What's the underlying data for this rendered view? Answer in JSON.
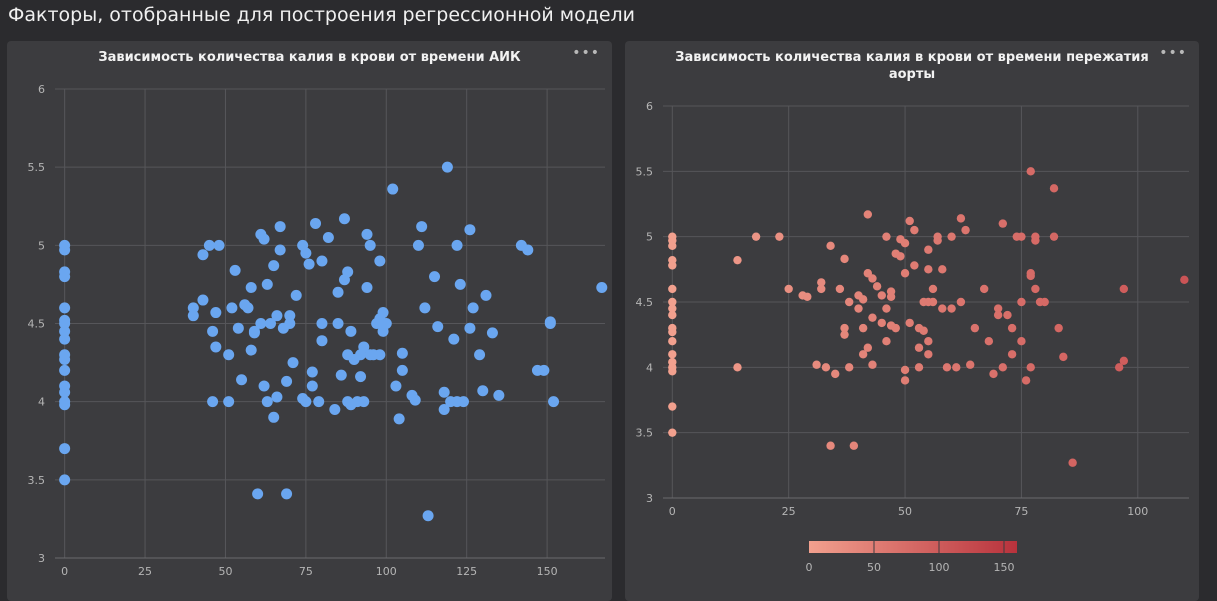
{
  "page": {
    "title": "Факторы, отобранные для построения регрессионной модели"
  },
  "chart_data": [
    {
      "type": "scatter",
      "title": "Зависимость количества калия в крови от времени АИК",
      "xlabel": "",
      "ylabel": "",
      "xlim": [
        -3,
        168
      ],
      "ylim": [
        3,
        6
      ],
      "xticks": [
        0,
        25,
        50,
        75,
        100,
        125,
        150
      ],
      "yticks": [
        3,
        3.5,
        4,
        4.5,
        5,
        5.5,
        6
      ],
      "grid": true,
      "color": "#6aa6f0",
      "points": [
        [
          0,
          5.0
        ],
        [
          0,
          4.97
        ],
        [
          0,
          4.83
        ],
        [
          0,
          4.8
        ],
        [
          0,
          4.6
        ],
        [
          0,
          4.52
        ],
        [
          0,
          4.5
        ],
        [
          0,
          4.45
        ],
        [
          0,
          4.4
        ],
        [
          0,
          4.3
        ],
        [
          0,
          4.27
        ],
        [
          0,
          4.2
        ],
        [
          0,
          4.1
        ],
        [
          0,
          4.06
        ],
        [
          0,
          4.0
        ],
        [
          0,
          3.98
        ],
        [
          0,
          3.7
        ],
        [
          0,
          3.5
        ],
        [
          40,
          4.6
        ],
        [
          40,
          4.55
        ],
        [
          43,
          4.65
        ],
        [
          43,
          4.94
        ],
        [
          45,
          5.0
        ],
        [
          46,
          4.45
        ],
        [
          46,
          4.0
        ],
        [
          47,
          4.35
        ],
        [
          47,
          4.57
        ],
        [
          48,
          5.0
        ],
        [
          51,
          4.3
        ],
        [
          51,
          4.0
        ],
        [
          52,
          4.6
        ],
        [
          53,
          4.84
        ],
        [
          54,
          4.47
        ],
        [
          55,
          4.14
        ],
        [
          56,
          4.62
        ],
        [
          57,
          4.6
        ],
        [
          58,
          4.33
        ],
        [
          58,
          4.73
        ],
        [
          59,
          4.45
        ],
        [
          59,
          4.44
        ],
        [
          60,
          3.41
        ],
        [
          61,
          4.5
        ],
        [
          61,
          5.07
        ],
        [
          62,
          5.04
        ],
        [
          62,
          4.1
        ],
        [
          63,
          4.0
        ],
        [
          63,
          4.75
        ],
        [
          64,
          4.5
        ],
        [
          65,
          3.9
        ],
        [
          65,
          4.87
        ],
        [
          66,
          4.03
        ],
        [
          66,
          4.55
        ],
        [
          67,
          5.12
        ],
        [
          67,
          4.97
        ],
        [
          68,
          4.47
        ],
        [
          69,
          4.13
        ],
        [
          69,
          3.41
        ],
        [
          70,
          4.5
        ],
        [
          70,
          4.55
        ],
        [
          71,
          4.25
        ],
        [
          72,
          4.68
        ],
        [
          74,
          4.02
        ],
        [
          74,
          5.0
        ],
        [
          75,
          4.0
        ],
        [
          75,
          4.95
        ],
        [
          76,
          4.88
        ],
        [
          77,
          4.19
        ],
        [
          77,
          4.1
        ],
        [
          78,
          5.14
        ],
        [
          79,
          4.0
        ],
        [
          80,
          4.9
        ],
        [
          80,
          4.5
        ],
        [
          80,
          4.39
        ],
        [
          82,
          5.05
        ],
        [
          84,
          3.95
        ],
        [
          85,
          4.5
        ],
        [
          85,
          4.7
        ],
        [
          86,
          4.17
        ],
        [
          87,
          4.78
        ],
        [
          87,
          5.17
        ],
        [
          88,
          4.3
        ],
        [
          88,
          4.83
        ],
        [
          88,
          4.0
        ],
        [
          89,
          4.45
        ],
        [
          89,
          3.98
        ],
        [
          90,
          4.27
        ],
        [
          91,
          4.0
        ],
        [
          92,
          4.3
        ],
        [
          92,
          4.16
        ],
        [
          93,
          4.0
        ],
        [
          93,
          4.35
        ],
        [
          94,
          4.73
        ],
        [
          94,
          5.07
        ],
        [
          95,
          4.3
        ],
        [
          95,
          5.0
        ],
        [
          96,
          4.3
        ],
        [
          97,
          4.5
        ],
        [
          98,
          4.3
        ],
        [
          98,
          4.9
        ],
        [
          98,
          4.53
        ],
        [
          99,
          4.57
        ],
        [
          99,
          4.49
        ],
        [
          99,
          4.45
        ],
        [
          100,
          4.5
        ],
        [
          102,
          5.36
        ],
        [
          103,
          4.1
        ],
        [
          104,
          3.89
        ],
        [
          105,
          4.2
        ],
        [
          105,
          4.31
        ],
        [
          108,
          4.04
        ],
        [
          109,
          4.01
        ],
        [
          110,
          5.0
        ],
        [
          111,
          5.12
        ],
        [
          112,
          4.6
        ],
        [
          113,
          3.27
        ],
        [
          115,
          4.8
        ],
        [
          116,
          4.48
        ],
        [
          118,
          3.95
        ],
        [
          118,
          4.06
        ],
        [
          119,
          5.5
        ],
        [
          120,
          4.0
        ],
        [
          121,
          4.4
        ],
        [
          122,
          5.0
        ],
        [
          122,
          4.0
        ],
        [
          123,
          4.75
        ],
        [
          124,
          4.0
        ],
        [
          126,
          5.1
        ],
        [
          126,
          4.47
        ],
        [
          127,
          4.6
        ],
        [
          129,
          4.3
        ],
        [
          130,
          4.07
        ],
        [
          131,
          4.68
        ],
        [
          133,
          4.44
        ],
        [
          135,
          4.04
        ],
        [
          142,
          5.0
        ],
        [
          144,
          4.97
        ],
        [
          147,
          4.2
        ],
        [
          149,
          4.2
        ],
        [
          151,
          4.5
        ],
        [
          151,
          4.51
        ],
        [
          152,
          4.0
        ],
        [
          167,
          4.73
        ]
      ]
    },
    {
      "type": "scatter",
      "title": "Зависимость количества калия в крови от времени пережатия аорты",
      "xlabel": "",
      "ylabel": "",
      "xlim": [
        -2,
        111
      ],
      "ylim": [
        3,
        6
      ],
      "xticks": [
        0,
        25,
        50,
        75,
        100
      ],
      "yticks": [
        3,
        3.5,
        4,
        4.5,
        5,
        5.5,
        6
      ],
      "grid": true,
      "color_scale": {
        "colors": [
          "#f2a08e",
          "#b8323c"
        ],
        "range": [
          0,
          160
        ],
        "ticks": [
          0,
          50,
          100,
          150
        ]
      },
      "points": [
        [
          0,
          5.0
        ],
        [
          0,
          4.97
        ],
        [
          0,
          4.93
        ],
        [
          0,
          4.82
        ],
        [
          0,
          4.78
        ],
        [
          0,
          4.6
        ],
        [
          0,
          4.5
        ],
        [
          0,
          4.45
        ],
        [
          0,
          4.4
        ],
        [
          0,
          4.3
        ],
        [
          0,
          4.27
        ],
        [
          0,
          4.2
        ],
        [
          0,
          4.1
        ],
        [
          0,
          4.04
        ],
        [
          0,
          4.0
        ],
        [
          0,
          3.97
        ],
        [
          0,
          3.7
        ],
        [
          0,
          3.5
        ],
        [
          14,
          4.82
        ],
        [
          14,
          4.0
        ],
        [
          18,
          5.0
        ],
        [
          23,
          5.0
        ],
        [
          25,
          4.6
        ],
        [
          28,
          4.55
        ],
        [
          29,
          4.54
        ],
        [
          31,
          4.02
        ],
        [
          32,
          4.6
        ],
        [
          32,
          4.65
        ],
        [
          33,
          4.0
        ],
        [
          34,
          4.93
        ],
        [
          34,
          3.4
        ],
        [
          35,
          3.95
        ],
        [
          36,
          4.6
        ],
        [
          37,
          4.83
        ],
        [
          37,
          4.3
        ],
        [
          37,
          4.25
        ],
        [
          38,
          4.0
        ],
        [
          38,
          4.5
        ],
        [
          39,
          3.4
        ],
        [
          40,
          4.45
        ],
        [
          40,
          4.55
        ],
        [
          41,
          4.3
        ],
        [
          41,
          4.1
        ],
        [
          41,
          4.52
        ],
        [
          42,
          5.17
        ],
        [
          42,
          4.72
        ],
        [
          42,
          4.15
        ],
        [
          43,
          4.02
        ],
        [
          43,
          4.68
        ],
        [
          43,
          4.38
        ],
        [
          44,
          4.62
        ],
        [
          45,
          4.55
        ],
        [
          45,
          4.34
        ],
        [
          46,
          4.45
        ],
        [
          46,
          4.2
        ],
        [
          46,
          5.0
        ],
        [
          47,
          4.58
        ],
        [
          47,
          4.32
        ],
        [
          47,
          4.54
        ],
        [
          48,
          4.87
        ],
        [
          48,
          4.3
        ],
        [
          49,
          4.98
        ],
        [
          49,
          4.85
        ],
        [
          50,
          3.98
        ],
        [
          50,
          4.72
        ],
        [
          50,
          3.9
        ],
        [
          50,
          4.95
        ],
        [
          51,
          5.12
        ],
        [
          51,
          4.34
        ],
        [
          52,
          4.78
        ],
        [
          52,
          5.05
        ],
        [
          53,
          4.3
        ],
        [
          53,
          4.0
        ],
        [
          53,
          4.15
        ],
        [
          54,
          4.5
        ],
        [
          54,
          4.28
        ],
        [
          55,
          4.5
        ],
        [
          55,
          4.1
        ],
        [
          55,
          4.2
        ],
        [
          55,
          4.75
        ],
        [
          55,
          4.9
        ],
        [
          56,
          4.5
        ],
        [
          56,
          4.6
        ],
        [
          57,
          5.0
        ],
        [
          57,
          4.97
        ],
        [
          58,
          4.45
        ],
        [
          58,
          4.75
        ],
        [
          59,
          4.0
        ],
        [
          60,
          4.45
        ],
        [
          60,
          5.0
        ],
        [
          61,
          4.0
        ],
        [
          62,
          4.5
        ],
        [
          62,
          5.14
        ],
        [
          63,
          5.05
        ],
        [
          64,
          4.02
        ],
        [
          65,
          4.3
        ],
        [
          67,
          4.6
        ],
        [
          68,
          4.2
        ],
        [
          69,
          3.95
        ],
        [
          70,
          4.4
        ],
        [
          70,
          4.45
        ],
        [
          71,
          5.1
        ],
        [
          71,
          4.0
        ],
        [
          72,
          4.4
        ],
        [
          73,
          4.3
        ],
        [
          73,
          4.1
        ],
        [
          74,
          5.0
        ],
        [
          75,
          5.0
        ],
        [
          75,
          4.2
        ],
        [
          75,
          4.5
        ],
        [
          76,
          3.9
        ],
        [
          77,
          4.0
        ],
        [
          77,
          4.72
        ],
        [
          77,
          4.7
        ],
        [
          77,
          5.5
        ],
        [
          78,
          5.0
        ],
        [
          78,
          4.97
        ],
        [
          78,
          4.6
        ],
        [
          79,
          4.5
        ],
        [
          80,
          4.5
        ],
        [
          82,
          5.37
        ],
        [
          82,
          5.0
        ],
        [
          83,
          4.3
        ],
        [
          84,
          4.08
        ],
        [
          86,
          3.27
        ],
        [
          96,
          4.0
        ],
        [
          97,
          4.6
        ],
        [
          97,
          4.05
        ],
        [
          110,
          4.67
        ]
      ]
    }
  ]
}
